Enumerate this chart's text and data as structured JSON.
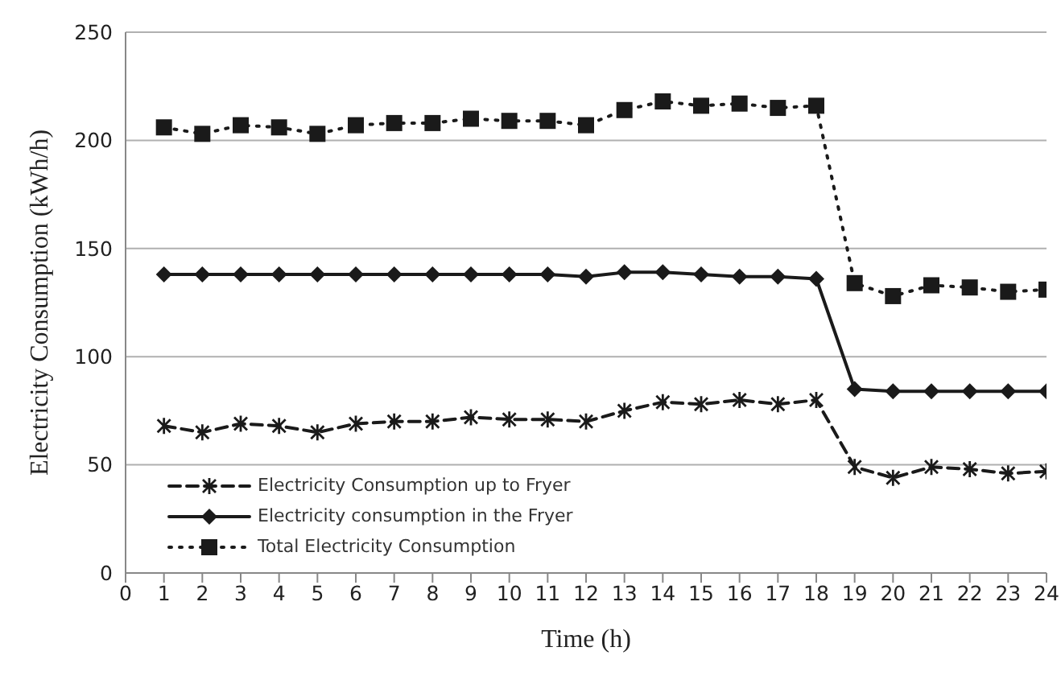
{
  "chart_data": {
    "type": "line",
    "xlabel": "Time (h)",
    "ylabel": "Electricity Consumption (kWh/h)",
    "x": [
      1,
      2,
      3,
      4,
      5,
      6,
      7,
      8,
      9,
      10,
      11,
      12,
      13,
      14,
      15,
      16,
      17,
      18,
      19,
      20,
      21,
      22,
      23,
      24
    ],
    "xlim": [
      0,
      24
    ],
    "xticks": [
      0,
      1,
      2,
      3,
      4,
      5,
      6,
      7,
      8,
      9,
      10,
      11,
      12,
      13,
      14,
      15,
      16,
      17,
      18,
      19,
      20,
      21,
      22,
      23,
      24
    ],
    "ylim": [
      0,
      250
    ],
    "yticks": [
      0,
      50,
      100,
      150,
      200,
      250
    ],
    "grid": "y",
    "legend": "bottom left",
    "series": [
      {
        "name": "Electricity Consumption up to Fryer",
        "color": "#1a1a1a",
        "marker": "cross",
        "line_style": "dashed",
        "values": [
          68,
          65,
          69,
          68,
          65,
          69,
          70,
          70,
          72,
          71,
          71,
          70,
          75,
          79,
          78,
          80,
          78,
          80,
          49,
          44,
          49,
          48,
          46,
          47
        ]
      },
      {
        "name": "Electricity consumption in the Fryer",
        "color": "#1a1a1a",
        "marker": "diamond",
        "line_style": "solid",
        "values": [
          138,
          138,
          138,
          138,
          138,
          138,
          138,
          138,
          138,
          138,
          138,
          137,
          139,
          139,
          138,
          137,
          137,
          136,
          85,
          84,
          84,
          84,
          84,
          84
        ]
      },
      {
        "name": "Total Electricity Consumption",
        "color": "#1a1a1a",
        "marker": "square",
        "line_style": "dotted",
        "values": [
          206,
          203,
          207,
          206,
          203,
          207,
          208,
          208,
          210,
          209,
          209,
          207,
          214,
          218,
          216,
          217,
          215,
          216,
          134,
          128,
          133,
          132,
          130,
          131
        ]
      }
    ]
  }
}
